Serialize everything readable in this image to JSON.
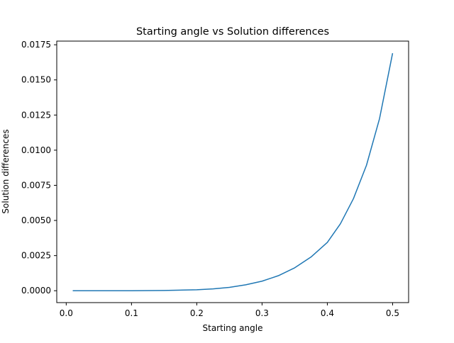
{
  "chart_data": {
    "type": "line",
    "title": "Starting angle vs Solution differences",
    "xlabel": "Starting angle",
    "ylabel": "Solution differences",
    "xlim": [
      -0.0145,
      0.5245
    ],
    "ylim": [
      -0.000845,
      0.01776
    ],
    "xticks": [
      0.0,
      0.1,
      0.2,
      0.3,
      0.4,
      0.5
    ],
    "xtick_labels": [
      "0.0",
      "0.1",
      "0.2",
      "0.3",
      "0.4",
      "0.5"
    ],
    "yticks": [
      0.0,
      0.0025,
      0.005,
      0.0075,
      0.01,
      0.0125,
      0.015,
      0.0175
    ],
    "ytick_labels": [
      "0.0000",
      "0.0025",
      "0.0050",
      "0.0075",
      "0.0100",
      "0.0125",
      "0.0150",
      "0.0175"
    ],
    "grid": false,
    "series": [
      {
        "color": "#1f77b4",
        "x": [
          0.01,
          0.05,
          0.1,
          0.15,
          0.2,
          0.225,
          0.25,
          0.275,
          0.3,
          0.325,
          0.35,
          0.375,
          0.4,
          0.42,
          0.44,
          0.46,
          0.48,
          0.5
        ],
        "y": [
          0.0,
          0.0,
          0.0,
          2e-05,
          7e-05,
          0.00013,
          0.00024,
          0.00042,
          0.00068,
          0.00107,
          0.00163,
          0.0024,
          0.00344,
          0.00476,
          0.00655,
          0.00893,
          0.01225,
          0.0169
        ]
      }
    ]
  }
}
